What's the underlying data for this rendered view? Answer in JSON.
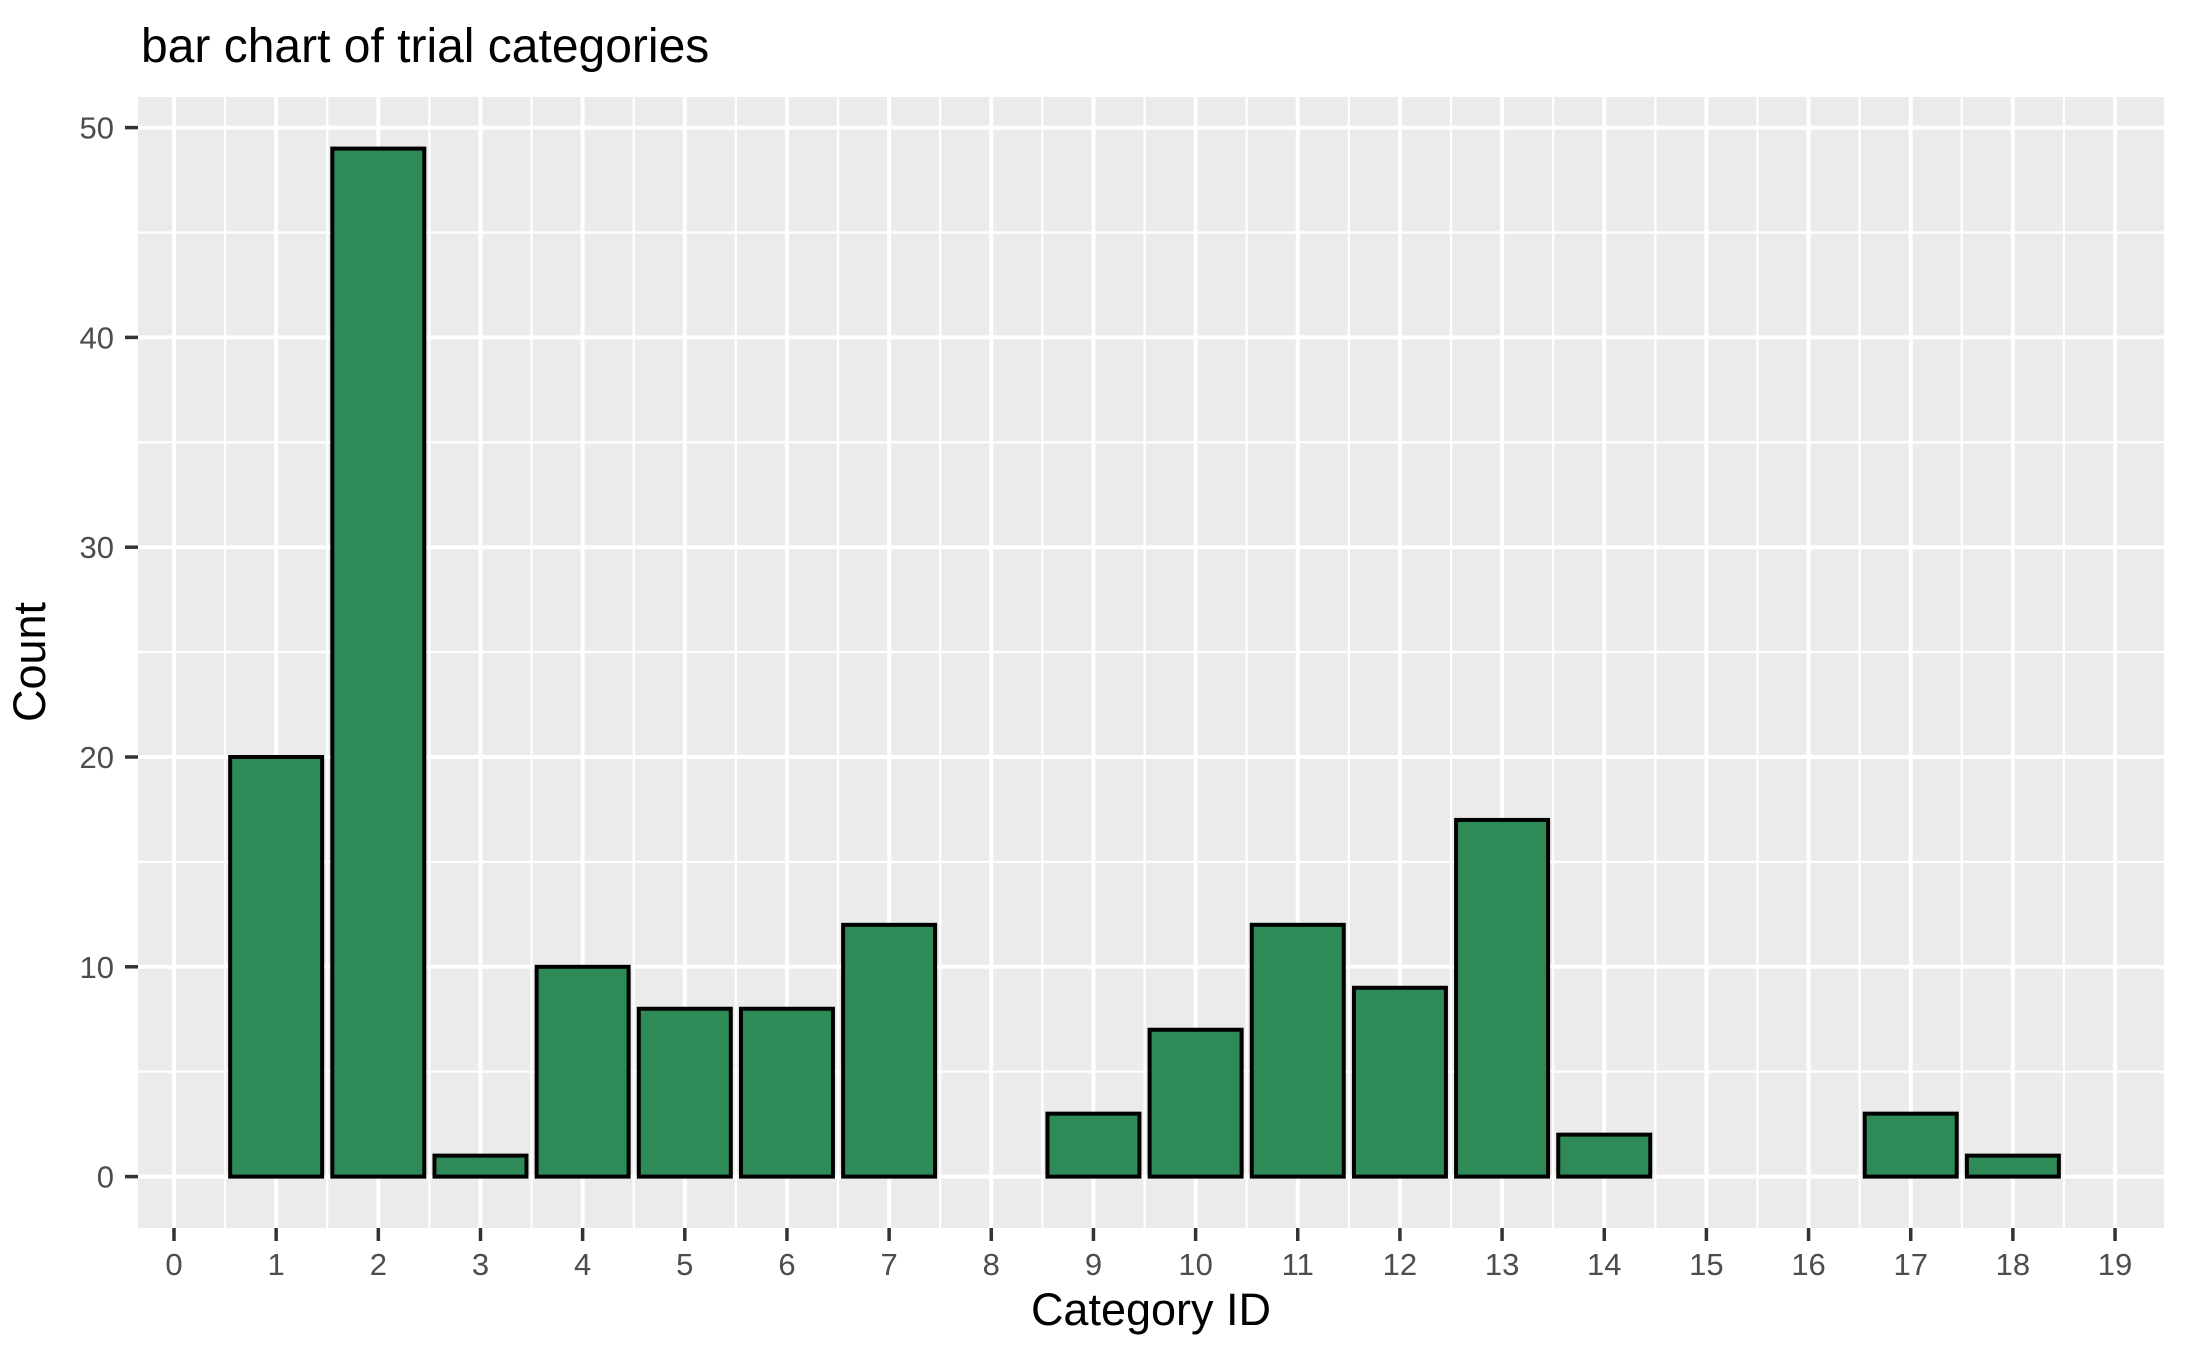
{
  "chart_data": {
    "type": "bar",
    "title": "bar chart of trial categories",
    "xlabel": "Category ID",
    "ylabel": "Count",
    "categories": [
      0,
      1,
      2,
      3,
      4,
      5,
      6,
      7,
      8,
      9,
      10,
      11,
      12,
      13,
      14,
      15,
      16,
      17,
      18,
      19
    ],
    "values": [
      0,
      20,
      49,
      1,
      10,
      8,
      8,
      12,
      0,
      3,
      7,
      12,
      9,
      17,
      2,
      0,
      0,
      3,
      1,
      0
    ],
    "x_ticks": [
      0,
      1,
      2,
      3,
      4,
      5,
      6,
      7,
      8,
      9,
      10,
      11,
      12,
      13,
      14,
      15,
      16,
      17,
      18,
      19
    ],
    "y_ticks": [
      0,
      10,
      20,
      30,
      40,
      50
    ],
    "y_minor_ticks": [
      5,
      15,
      25,
      35,
      45
    ],
    "ylim": [
      0,
      50
    ],
    "grid": "on",
    "legend": "none",
    "colors": {
      "bar_fill": "#2E8B57",
      "bar_stroke": "#000000",
      "panel_background": "#EBEBEB",
      "gridline": "#FFFFFF",
      "tick_mark": "#333333",
      "tick_label": "#4D4D4D",
      "text": "#000000",
      "figure_background": "#FFFFFF"
    }
  }
}
